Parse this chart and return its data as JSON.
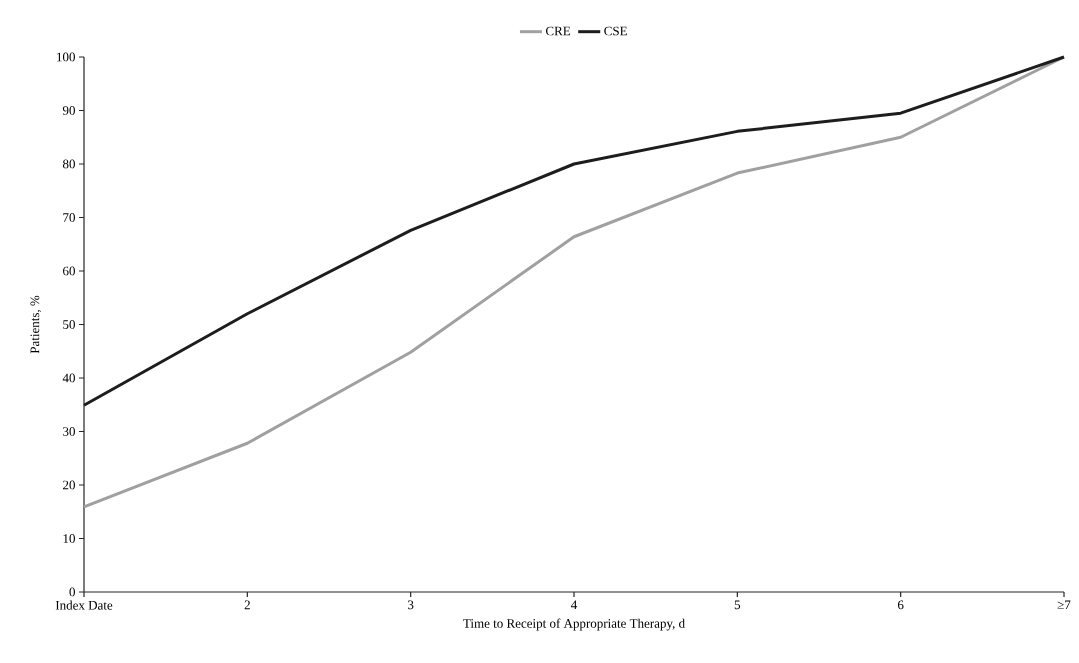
{
  "chart_data": {
    "type": "line",
    "categories": [
      "Index Date",
      "2",
      "3",
      "4",
      "5",
      "6",
      "≥7"
    ],
    "series": [
      {
        "name": "CRE",
        "color": "#a0a0a2",
        "values": [
          15.9,
          27.8,
          44.8,
          66.4,
          78.3,
          85.0,
          100
        ]
      },
      {
        "name": "CSE",
        "color": "#1e1c1c",
        "values": [
          34.9,
          52.0,
          67.6,
          80.0,
          86.1,
          89.5,
          100
        ]
      }
    ],
    "xlabel": "Time to Receipt of Appropriate Therapy, d",
    "ylabel": "Patients, %",
    "ylim": [
      0,
      100
    ],
    "yticks": [
      0,
      10,
      20,
      30,
      40,
      50,
      60,
      70,
      80,
      90,
      100
    ],
    "legend": "top",
    "grid": false,
    "marker": "none",
    "line_style": "solid"
  }
}
